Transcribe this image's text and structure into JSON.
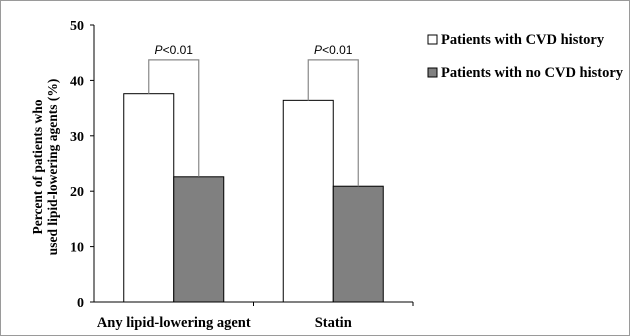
{
  "chart_data": {
    "type": "bar",
    "title": "",
    "xlabel": "",
    "ylabel_line1": "Percent of patients who",
    "ylabel_line2": "used lipid-lowering agents (%)",
    "ylim": [
      0,
      50
    ],
    "yticks": [
      0,
      10,
      20,
      30,
      40,
      50
    ],
    "categories": [
      "Any lipid-lowering agent",
      "Statin"
    ],
    "series": [
      {
        "name": "Patients with CVD history",
        "values": [
          37.6,
          36.4
        ],
        "color": "#ffffff"
      },
      {
        "name": "Patients with no CVD history",
        "values": [
          22.6,
          20.9
        ],
        "color": "#808080"
      }
    ],
    "annotations": [
      {
        "category": "Any lipid-lowering agent",
        "p_italic": "P",
        "p_rest": "<0.01",
        "bracket_y": 43.7
      },
      {
        "category": "Statin",
        "p_italic": "P",
        "p_rest": "<0.01",
        "bracket_y": 43.7
      }
    ],
    "legend_position": "top-right",
    "grid": false
  }
}
